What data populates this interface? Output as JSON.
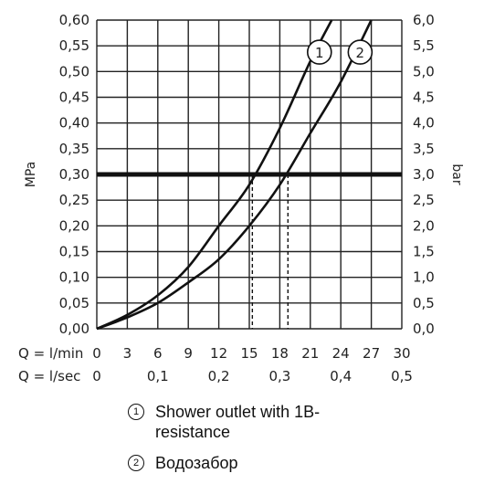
{
  "chart_data": {
    "type": "line",
    "ylabel_left": "MPa",
    "ylabel_right": "bar",
    "y_left": {
      "min": 0,
      "max": 0.6,
      "ticks": [
        "0,00",
        "0,05",
        "0,10",
        "0,15",
        "0,20",
        "0,25",
        "0,30",
        "0,35",
        "0,40",
        "0,45",
        "0,50",
        "0,55",
        "0,60"
      ]
    },
    "y_right": {
      "min": 0,
      "max": 6,
      "ticks": [
        "0,0",
        "0,5",
        "1,0",
        "1,5",
        "2,0",
        "2,5",
        "3,0",
        "3,5",
        "4,0",
        "4,5",
        "5,0",
        "5,5",
        "6,0"
      ]
    },
    "x_primary": {
      "label": "Q = l/min",
      "min": 0,
      "max": 30,
      "ticks": [
        "0",
        "3",
        "6",
        "9",
        "12",
        "15",
        "18",
        "21",
        "24",
        "27",
        "30"
      ]
    },
    "x_secondary": {
      "label": "Q = l/sec",
      "ticks": [
        "0",
        "0,1",
        "0,2",
        "0,3",
        "0,4",
        "0,5"
      ],
      "values": [
        0,
        0.1,
        0.2,
        0.3,
        0.4,
        0.5
      ]
    },
    "grid": true,
    "reference_line": {
      "y": 0.3
    },
    "series": [
      {
        "marker": "1",
        "x": [
          0,
          3,
          6,
          9,
          12,
          15,
          18,
          21,
          23.1
        ],
        "y": [
          0,
          0.027,
          0.065,
          0.12,
          0.2,
          0.28,
          0.39,
          0.52,
          0.6
        ]
      },
      {
        "marker": "2",
        "x": [
          0,
          3,
          6,
          9,
          12,
          15,
          18,
          21,
          24,
          27
        ],
        "y": [
          0,
          0.022,
          0.05,
          0.09,
          0.135,
          0.2,
          0.28,
          0.38,
          0.48,
          0.6
        ]
      }
    ],
    "drop_lines": [
      15.3,
      18.8
    ]
  },
  "legend": [
    {
      "num": "1",
      "text": "Shower outlet with 1B-resistance"
    },
    {
      "num": "2",
      "text": "Водозабор"
    }
  ]
}
